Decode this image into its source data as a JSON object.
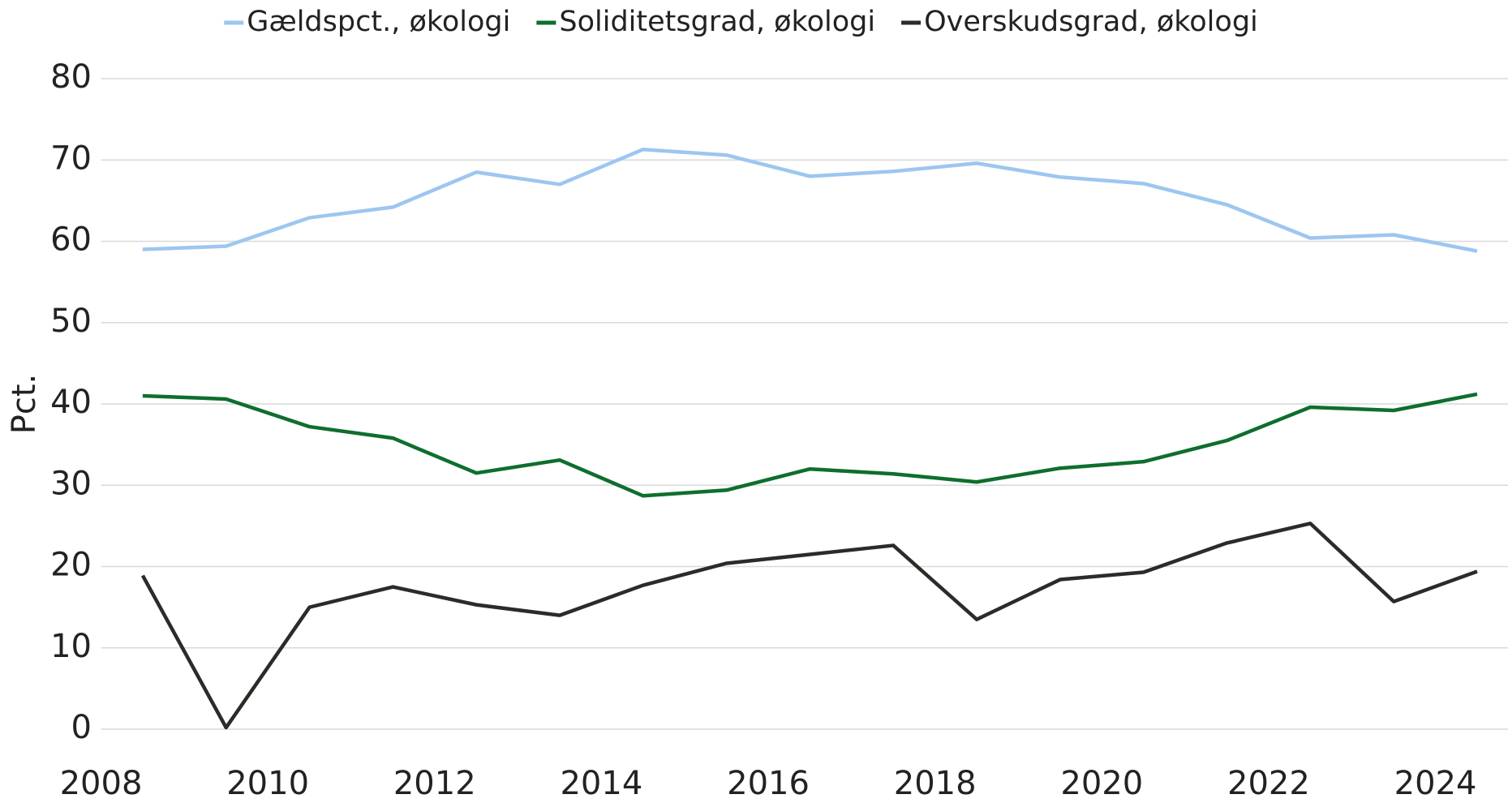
{
  "chart_data": {
    "type": "line",
    "y_label": "Pct.",
    "x": [
      2008.5,
      2009.5,
      2010.5,
      2011.5,
      2012.5,
      2013.5,
      2014.5,
      2015.5,
      2016.5,
      2017.5,
      2018.5,
      2019.5,
      2020.5,
      2021.5,
      2022.5,
      2023.5,
      2024.5
    ],
    "series": [
      {
        "name": "Gældspct., økologi",
        "color": "#9dc6f0",
        "values": [
          59.0,
          59.4,
          62.9,
          64.2,
          68.5,
          67.0,
          71.3,
          70.6,
          68.0,
          68.6,
          69.6,
          67.9,
          67.1,
          64.5,
          60.4,
          60.8,
          58.8
        ]
      },
      {
        "name": "Soliditetsgrad, økologi",
        "color": "#0e6e2e",
        "values": [
          41.0,
          40.6,
          37.2,
          35.8,
          31.5,
          33.1,
          28.7,
          29.4,
          32.0,
          31.4,
          30.4,
          32.1,
          32.9,
          35.5,
          39.6,
          39.2,
          41.2
        ]
      },
      {
        "name": "Overskudsgrad, økologi",
        "color": "#2b2b27",
        "values": [
          18.9,
          0.2,
          15.0,
          17.5,
          15.3,
          14.0,
          17.7,
          20.4,
          21.5,
          22.6,
          13.5,
          18.4,
          19.3,
          22.9,
          25.3,
          15.7,
          19.4
        ]
      }
    ],
    "xlim": [
      2008,
      2024.87
    ],
    "xticks": [
      2008,
      2010,
      2012,
      2014,
      2016,
      2018,
      2020,
      2022,
      2024
    ],
    "ylim": [
      0,
      80
    ],
    "yticks": [
      0,
      10,
      20,
      30,
      40,
      50,
      60,
      70,
      80
    ],
    "grid": true,
    "legend": "top"
  }
}
